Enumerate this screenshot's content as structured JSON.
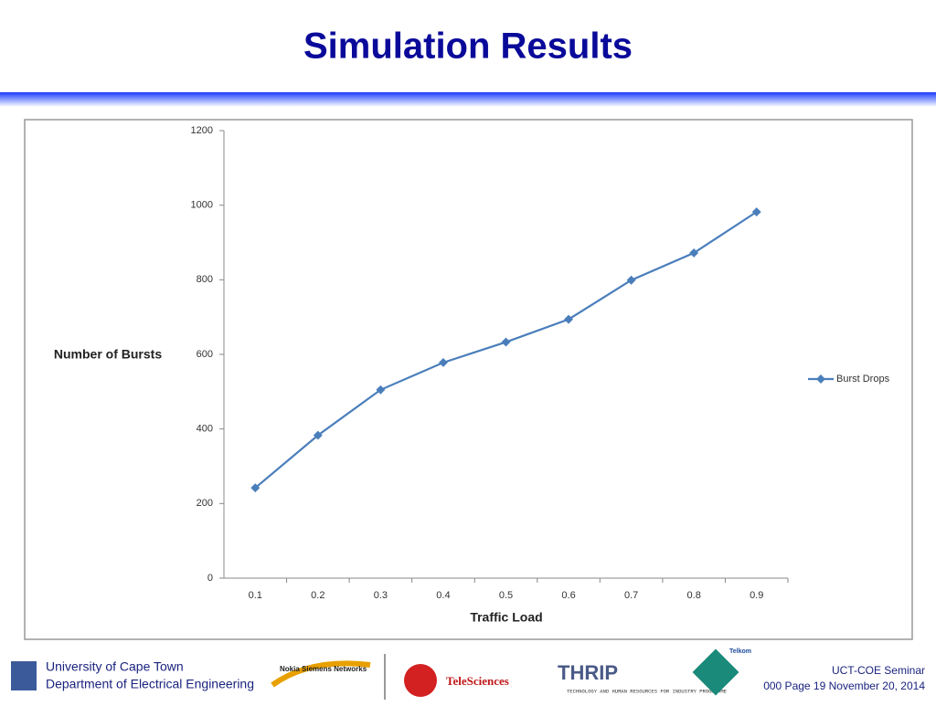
{
  "slide_title": "Simulation Results",
  "chart_data": {
    "type": "line",
    "categories": [
      "0.1",
      "0.2",
      "0.3",
      "0.4",
      "0.5",
      "0.6",
      "0.7",
      "0.8",
      "0.9"
    ],
    "series": [
      {
        "name": "Burst Drops",
        "color": "#4a7ebb",
        "values": [
          242,
          383,
          505,
          578,
          633,
          694,
          799,
          872,
          982
        ]
      }
    ],
    "ylim": [
      0,
      1200
    ],
    "yticks": [
      0,
      200,
      400,
      600,
      800,
      1000,
      1200
    ],
    "ylabel": "Number of Bursts",
    "xlabel": "Traffic Load",
    "grid": false,
    "legend": "right"
  },
  "footer": {
    "university": "University of Cape Town",
    "department": "Department of Electrical Engineering",
    "logos": [
      "Nokia Siemens Networks",
      "TeleSciences",
      "THRIP",
      "TECHNOLOGY AND HUMAN RESOURCES FOR INDUSTRY PROGRAMME",
      "Telkom"
    ],
    "seminar": "UCT-COE Seminar",
    "page": "000 Page 19 November 20, 2014"
  }
}
